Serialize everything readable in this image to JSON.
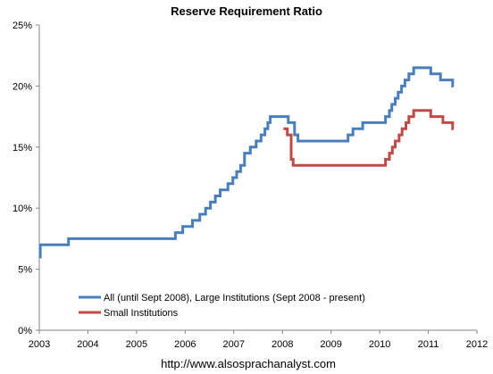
{
  "chart_data": {
    "type": "line",
    "title": "Reserve Requirement Ratio",
    "xlabel": "",
    "ylabel": "",
    "footer": "http://www.alsosprachanalyst.com",
    "xlim": [
      2003,
      2012
    ],
    "ylim": [
      0,
      25
    ],
    "x_ticks": [
      2003,
      2004,
      2005,
      2006,
      2007,
      2008,
      2009,
      2010,
      2011,
      2012
    ],
    "y_ticks": [
      {
        "value": 0,
        "label": "0%"
      },
      {
        "value": 5,
        "label": "5%"
      },
      {
        "value": 10,
        "label": "10%"
      },
      {
        "value": 15,
        "label": "15%"
      },
      {
        "value": 20,
        "label": "20%"
      },
      {
        "value": 25,
        "label": "25%"
      }
    ],
    "grid": false,
    "legend_position": "bottom-left",
    "series": [
      {
        "name": "All (until Sept 2008), Large Institutions (Sept 2008 - present)",
        "color": "#4a7ebb",
        "step": true,
        "points": [
          [
            2003.0,
            6.0
          ],
          [
            2003.02,
            7.0
          ],
          [
            2003.6,
            7.5
          ],
          [
            2005.8,
            8.0
          ],
          [
            2005.95,
            8.5
          ],
          [
            2006.15,
            9.0
          ],
          [
            2006.3,
            9.5
          ],
          [
            2006.42,
            10.0
          ],
          [
            2006.52,
            10.5
          ],
          [
            2006.62,
            11.0
          ],
          [
            2006.72,
            11.5
          ],
          [
            2006.88,
            12.0
          ],
          [
            2006.98,
            12.5
          ],
          [
            2007.06,
            13.0
          ],
          [
            2007.14,
            13.5
          ],
          [
            2007.22,
            14.5
          ],
          [
            2007.34,
            15.0
          ],
          [
            2007.46,
            15.5
          ],
          [
            2007.56,
            16.0
          ],
          [
            2007.64,
            16.5
          ],
          [
            2007.7,
            17.0
          ],
          [
            2007.75,
            17.5
          ],
          [
            2008.12,
            17.0
          ],
          [
            2008.25,
            16.0
          ],
          [
            2008.32,
            15.5
          ],
          [
            2009.35,
            16.0
          ],
          [
            2009.45,
            16.5
          ],
          [
            2009.65,
            17.0
          ],
          [
            2010.12,
            17.5
          ],
          [
            2010.2,
            18.0
          ],
          [
            2010.25,
            18.5
          ],
          [
            2010.32,
            19.0
          ],
          [
            2010.38,
            19.5
          ],
          [
            2010.45,
            20.0
          ],
          [
            2010.52,
            20.5
          ],
          [
            2010.6,
            21.0
          ],
          [
            2010.7,
            21.5
          ],
          [
            2011.05,
            21.0
          ],
          [
            2011.25,
            20.5
          ],
          [
            2011.5,
            20.0
          ],
          [
            2011.52,
            20.0
          ]
        ]
      },
      {
        "name": "Small Institutions",
        "color": "#be4b48",
        "step": true,
        "points": [
          [
            2008.02,
            16.5
          ],
          [
            2008.1,
            16.0
          ],
          [
            2008.18,
            14.0
          ],
          [
            2008.22,
            13.5
          ],
          [
            2010.12,
            14.0
          ],
          [
            2010.2,
            14.5
          ],
          [
            2010.26,
            15.0
          ],
          [
            2010.32,
            15.5
          ],
          [
            2010.4,
            16.0
          ],
          [
            2010.46,
            16.5
          ],
          [
            2010.54,
            17.0
          ],
          [
            2010.6,
            17.5
          ],
          [
            2010.7,
            18.0
          ],
          [
            2011.05,
            17.5
          ],
          [
            2011.3,
            17.0
          ],
          [
            2011.5,
            16.5
          ],
          [
            2011.52,
            16.5
          ]
        ]
      }
    ]
  }
}
